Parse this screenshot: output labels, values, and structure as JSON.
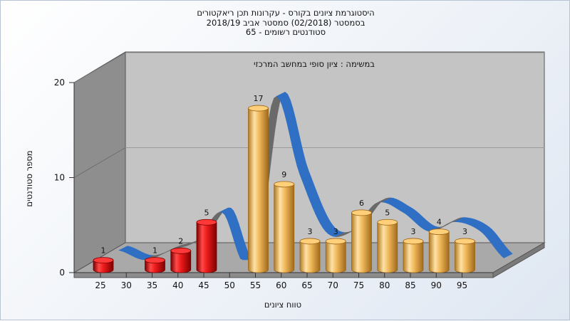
{
  "titles": {
    "line1": "היסטוגרמת ציונים בקורס - עקרונות תכן ריאקטורים",
    "line2": "בסמסטר  (02/2018)  סמסטר אביב 2018/19",
    "line3": "סטודנטים רשומים - 65"
  },
  "chart_data": {
    "type": "bar",
    "title": "היסטוגרמת ציונים בקורס - עקרונות תכן ריאקטורים",
    "subtitle": "במשימה : ציון סופי במחשב המרכזי",
    "xlabel": "טווח ציונים",
    "ylabel": "מספר סטודנטים",
    "ylim": [
      0,
      20
    ],
    "yticks": [
      0,
      10,
      20
    ],
    "xticks": [
      25,
      30,
      35,
      40,
      45,
      50,
      55,
      60,
      65,
      70,
      75,
      80,
      85,
      90,
      95
    ],
    "series": [
      {
        "categories": [
          25,
          35,
          40,
          45
        ],
        "values": [
          1,
          1,
          2,
          5
        ],
        "color": "#e01a1a"
      },
      {
        "categories": [
          55,
          60,
          65,
          70,
          75,
          80,
          85,
          90,
          95
        ],
        "values": [
          17,
          9,
          3,
          3,
          6,
          5,
          3,
          4,
          3
        ],
        "color": "#f0b85a"
      }
    ],
    "distribution_curve_color": "#2f6fc4",
    "colors": {
      "wall": "#8e8e8e",
      "back_wall": "#c4c4c4",
      "floor": "#a9a9a9"
    }
  }
}
